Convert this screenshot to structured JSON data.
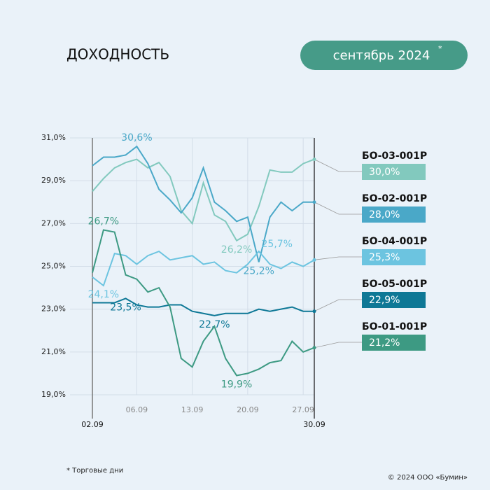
{
  "chart_data": {
    "type": "line",
    "title": "ДОХОДНОСТЬ",
    "period": "сентябрь 2024",
    "period_mark": "*",
    "footnote": "* Торговые дни",
    "copyright": "© 2024 ООО «Бумин»",
    "categories": [
      "02.09",
      null,
      null,
      null,
      "06.09",
      null,
      null,
      null,
      null,
      "13.09",
      null,
      null,
      null,
      null,
      "20.09",
      null,
      null,
      null,
      null,
      "27.09",
      "30.09"
    ],
    "ylim": [
      19,
      31
    ],
    "yticks": [
      {
        "value": 19,
        "label": "19,0%"
      },
      {
        "value": 21,
        "label": "21,0%"
      },
      {
        "value": 23,
        "label": "23,0%"
      },
      {
        "value": 25,
        "label": "25,0%"
      },
      {
        "value": 27,
        "label": "27,0%"
      },
      {
        "value": 29,
        "label": "29,0%"
      },
      {
        "value": 31,
        "label": "31,0%"
      }
    ],
    "grid": true,
    "series": [
      {
        "name": "БО-03-001Р",
        "color": "#82c9be",
        "values": [
          28.5,
          29.1,
          29.6,
          29.85,
          30.0,
          29.6,
          29.85,
          29.2,
          27.6,
          27.0,
          28.9,
          27.4,
          27.1,
          26.2,
          26.5,
          27.8,
          29.5,
          29.4,
          29.4,
          29.8,
          30.0
        ],
        "value_labels": [
          null,
          null,
          null,
          null,
          null,
          null,
          null,
          null,
          null,
          null,
          null,
          null,
          null,
          "26,2%",
          null,
          null,
          null,
          null,
          null,
          null,
          "30,0%"
        ]
      },
      {
        "name": "БО-02-001Р",
        "color": "#4aa8c8",
        "values": [
          29.7,
          30.1,
          30.1,
          30.2,
          30.6,
          29.8,
          28.6,
          28.1,
          27.5,
          28.2,
          29.6,
          28.0,
          27.6,
          27.1,
          27.3,
          25.2,
          27.3,
          28.0,
          27.6,
          28.0,
          28.0
        ],
        "value_labels": [
          null,
          null,
          null,
          null,
          "30,6%",
          null,
          null,
          null,
          null,
          null,
          null,
          null,
          null,
          null,
          null,
          "25,2%",
          null,
          null,
          null,
          null,
          "28,0%"
        ]
      },
      {
        "name": "БО-04-001Р",
        "color": "#6cc4e0",
        "values": [
          24.5,
          24.1,
          25.6,
          25.5,
          25.1,
          25.5,
          25.7,
          25.3,
          25.4,
          25.5,
          25.1,
          25.2,
          24.8,
          24.7,
          25.1,
          25.7,
          25.1,
          24.9,
          25.2,
          25.0,
          25.3
        ],
        "value_labels": [
          null,
          "24,1%",
          null,
          null,
          null,
          null,
          null,
          null,
          null,
          null,
          null,
          null,
          null,
          null,
          null,
          "25,7%",
          null,
          null,
          null,
          null,
          "25,3%"
        ]
      },
      {
        "name": "БО-05-001Р",
        "color": "#0e7896",
        "values": [
          23.3,
          23.3,
          23.3,
          23.5,
          23.2,
          23.1,
          23.1,
          23.2,
          23.2,
          22.9,
          22.8,
          22.7,
          22.8,
          22.8,
          22.8,
          23.0,
          22.9,
          23.0,
          23.1,
          22.9,
          22.9
        ],
        "value_labels": [
          null,
          null,
          null,
          "23,5%",
          null,
          null,
          null,
          null,
          null,
          null,
          null,
          "22,7%",
          null,
          null,
          null,
          null,
          null,
          null,
          null,
          null,
          "22,9%"
        ]
      },
      {
        "name": "БО-01-001Р",
        "color": "#3d9a83",
        "values": [
          24.7,
          26.7,
          26.6,
          24.6,
          24.4,
          23.8,
          24.0,
          23.1,
          20.7,
          20.3,
          21.5,
          22.2,
          20.7,
          19.9,
          20.0,
          20.2,
          20.5,
          20.6,
          21.5,
          21.0,
          21.2
        ],
        "value_labels": [
          null,
          "26,7%",
          null,
          null,
          null,
          null,
          null,
          null,
          null,
          null,
          null,
          null,
          null,
          "19,9%",
          null,
          null,
          null,
          null,
          null,
          null,
          "21,2%"
        ]
      }
    ]
  }
}
